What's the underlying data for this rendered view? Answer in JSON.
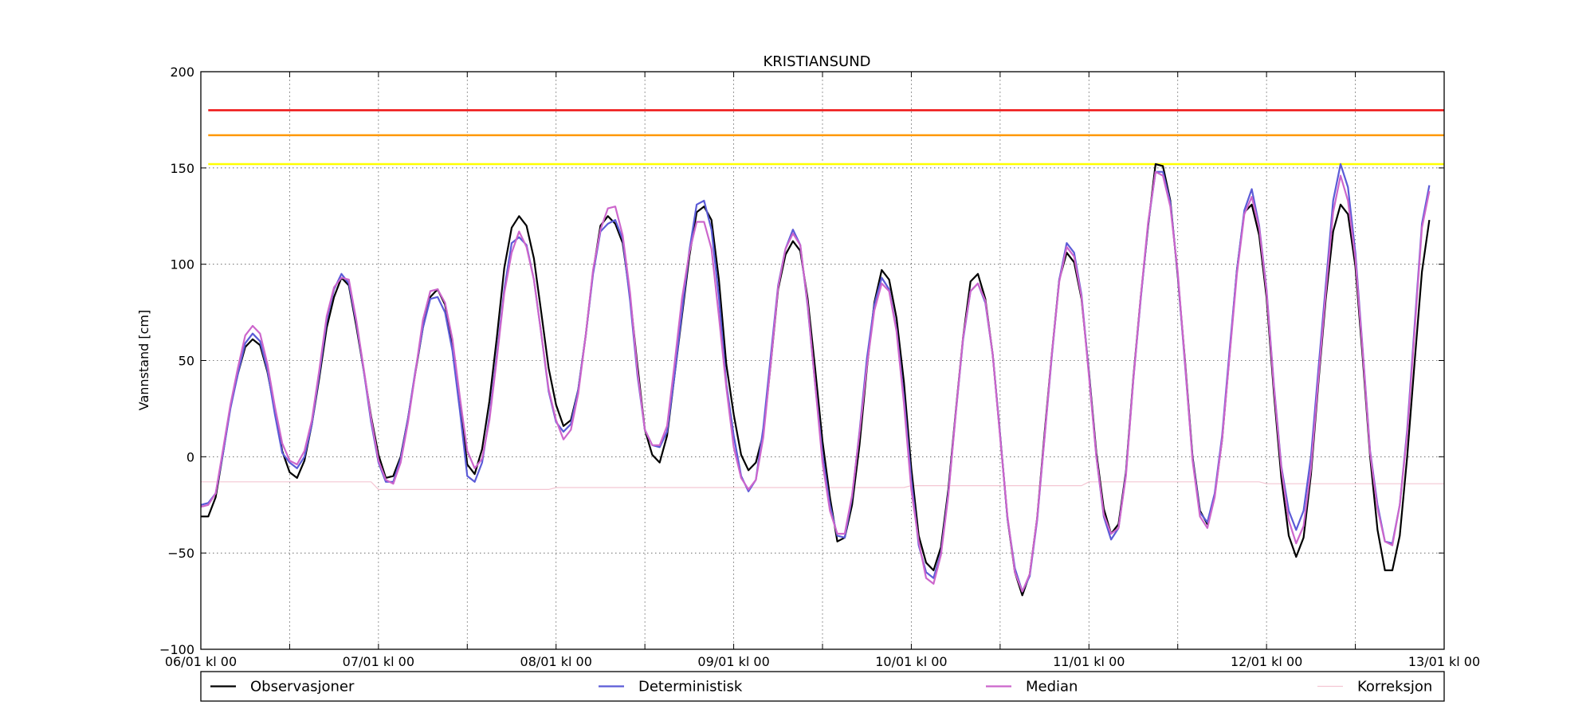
{
  "chart_data": {
    "type": "line",
    "title": "KRISTIANSUND",
    "xlabel": "",
    "ylabel": "Vannstand [cm]",
    "ylim": [
      -100,
      200
    ],
    "xlim": [
      "06/01 kl 00",
      "13/01 kl 00"
    ],
    "yticks": [
      -100,
      -50,
      0,
      50,
      100,
      150,
      200
    ],
    "ytick_labels": [
      "−100",
      "−50",
      "0",
      "50",
      "100",
      "150",
      "200"
    ],
    "xticks": [
      "06/01 kl 00",
      "07/01 kl 00",
      "08/01 kl 00",
      "09/01 kl 00",
      "10/01 kl 00",
      "11/01 kl 00",
      "12/01 kl 00",
      "13/01 kl 00"
    ],
    "grid": true,
    "legend_position": "below",
    "thresholds": [
      {
        "value": 180,
        "color": "#ee1111"
      },
      {
        "value": 167,
        "color": "#ff9900"
      },
      {
        "value": 152,
        "color": "#ffff00"
      }
    ],
    "x_hours": [
      0,
      1,
      2,
      3,
      4,
      5,
      6,
      7,
      8,
      9,
      10,
      11,
      12,
      13,
      14,
      15,
      16,
      17,
      18,
      19,
      20,
      21,
      22,
      23,
      24,
      25,
      26,
      27,
      28,
      29,
      30,
      31,
      32,
      33,
      34,
      35,
      36,
      37,
      38,
      39,
      40,
      41,
      42,
      43,
      44,
      45,
      46,
      47,
      48,
      49,
      50,
      51,
      52,
      53,
      54,
      55,
      56,
      57,
      58,
      59,
      60,
      61,
      62,
      63,
      64,
      65,
      66,
      67,
      68,
      69,
      70,
      71,
      72,
      73,
      74,
      75,
      76,
      77,
      78,
      79,
      80,
      81,
      82,
      83,
      84,
      85,
      86,
      87,
      88,
      89,
      90,
      91,
      92,
      93,
      94,
      95,
      96,
      97,
      98,
      99,
      100,
      101,
      102,
      103,
      104,
      105,
      106,
      107,
      108,
      109,
      110,
      111,
      112,
      113,
      114,
      115,
      116,
      117,
      118,
      119,
      120,
      121,
      122,
      123,
      124,
      125,
      126,
      127,
      128,
      129,
      130,
      131,
      132,
      133,
      134,
      135,
      136,
      137,
      138,
      139,
      140,
      141,
      142,
      143,
      144,
      145,
      146,
      147,
      148,
      149,
      150,
      151,
      152,
      153,
      154,
      155,
      156,
      157,
      158,
      159,
      160,
      161,
      162,
      163,
      164,
      165,
      166,
      167,
      168
    ],
    "series": [
      {
        "name": "Observasjoner",
        "color": "#000000",
        "values": [
          -31,
          -31,
          -21,
          2,
          26,
          43,
          57,
          61,
          58,
          44,
          24,
          3,
          -8,
          -11,
          -2,
          17,
          41,
          67,
          83,
          93,
          89,
          68,
          45,
          21,
          1,
          -11,
          -10,
          0,
          20,
          44,
          67,
          83,
          87,
          79,
          58,
          27,
          -4,
          -9,
          4,
          29,
          62,
          98,
          119,
          125,
          120,
          103,
          75,
          46,
          27,
          16,
          19,
          35,
          63,
          96,
          120,
          125,
          121,
          111,
          83,
          47,
          14,
          1,
          -3,
          11,
          42,
          73,
          104,
          127,
          130,
          123,
          92,
          48,
          22,
          1,
          -7,
          -3,
          12,
          48,
          87,
          105,
          112,
          107,
          82,
          46,
          8,
          -21,
          -44,
          -42,
          -25,
          6,
          46,
          80,
          97,
          92,
          72,
          39,
          -6,
          -41,
          -55,
          -59,
          -47,
          -17,
          23,
          62,
          91,
          95,
          82,
          53,
          11,
          -32,
          -60,
          -72,
          -61,
          -32,
          12,
          54,
          92,
          106,
          101,
          82,
          44,
          2,
          -27,
          -40,
          -35,
          -8,
          41,
          83,
          120,
          152,
          151,
          133,
          94,
          49,
          0,
          -28,
          -35,
          -20,
          9,
          53,
          97,
          127,
          131,
          115,
          83,
          33,
          -11,
          -41,
          -52,
          -42,
          -9,
          38,
          82,
          117,
          131,
          126,
          99,
          51,
          0,
          -38,
          -59,
          -59,
          -41,
          0,
          49,
          96,
          123
        ]
      },
      {
        "name": "Deterministisk",
        "color": "#5b5bd7",
        "values": [
          -25,
          -24,
          -19,
          2,
          25,
          43,
          59,
          64,
          60,
          45,
          22,
          2,
          -3,
          -6,
          0,
          17,
          43,
          71,
          87,
          95,
          90,
          70,
          45,
          18,
          -3,
          -13,
          -13,
          -1,
          20,
          45,
          67,
          82,
          83,
          75,
          55,
          24,
          -10,
          -13,
          -3,
          21,
          53,
          87,
          111,
          114,
          110,
          92,
          64,
          34,
          18,
          13,
          17,
          35,
          63,
          95,
          117,
          121,
          123,
          113,
          81,
          42,
          14,
          6,
          5,
          13,
          42,
          75,
          107,
          131,
          133,
          118,
          83,
          38,
          11,
          -10,
          -18,
          -12,
          15,
          52,
          89,
          108,
          118,
          110,
          78,
          38,
          1,
          -25,
          -41,
          -42,
          -21,
          13,
          51,
          79,
          93,
          87,
          66,
          31,
          -12,
          -46,
          -60,
          -63,
          -50,
          -19,
          22,
          61,
          86,
          90,
          80,
          53,
          11,
          -32,
          -58,
          -70,
          -62,
          -33,
          10,
          53,
          92,
          111,
          106,
          84,
          43,
          0,
          -31,
          -43,
          -37,
          -9,
          40,
          82,
          121,
          148,
          148,
          132,
          95,
          47,
          -1,
          -29,
          -34,
          -19,
          11,
          55,
          97,
          128,
          139,
          120,
          87,
          37,
          -5,
          -28,
          -38,
          -28,
          0,
          45,
          89,
          133,
          152,
          140,
          106,
          55,
          3,
          -25,
          -44,
          -45,
          -25,
          14,
          68,
          121,
          141
        ]
      },
      {
        "name": "Median",
        "color": "#cc66cc",
        "values": [
          -26,
          -25,
          -19,
          4,
          27,
          46,
          63,
          68,
          64,
          48,
          26,
          7,
          -2,
          -4,
          3,
          19,
          45,
          73,
          88,
          93,
          92,
          71,
          46,
          20,
          -2,
          -12,
          -14,
          -3,
          18,
          44,
          71,
          86,
          87,
          80,
          61,
          31,
          3,
          -6,
          -1,
          19,
          51,
          85,
          106,
          117,
          109,
          92,
          64,
          35,
          19,
          9,
          14,
          33,
          63,
          97,
          118,
          129,
          130,
          115,
          85,
          44,
          14,
          6,
          6,
          16,
          48,
          82,
          106,
          122,
          122,
          108,
          73,
          36,
          5,
          -11,
          -17,
          -12,
          10,
          48,
          88,
          108,
          116,
          110,
          79,
          38,
          -3,
          -28,
          -40,
          -40,
          -20,
          12,
          47,
          76,
          90,
          86,
          65,
          28,
          -17,
          -44,
          -63,
          -66,
          -51,
          -20,
          22,
          62,
          86,
          90,
          81,
          53,
          10,
          -31,
          -60,
          -70,
          -61,
          -32,
          10,
          54,
          91,
          109,
          104,
          83,
          42,
          0,
          -30,
          -40,
          -37,
          -10,
          40,
          83,
          122,
          148,
          146,
          130,
          96,
          48,
          -2,
          -31,
          -37,
          -21,
          9,
          52,
          95,
          126,
          135,
          119,
          86,
          36,
          -6,
          -33,
          -45,
          -36,
          -6,
          40,
          85,
          127,
          146,
          133,
          103,
          54,
          2,
          -27,
          -44,
          -46,
          -25,
          12,
          65,
          119,
          138
        ]
      },
      {
        "name": "Korreksjon",
        "color": "#f4c6d3",
        "values": [
          -13,
          -13,
          -13,
          -13,
          -13,
          -13,
          -13,
          -13,
          -13,
          -13,
          -13,
          -13,
          -13,
          -13,
          -13,
          -13,
          -13,
          -13,
          -13,
          -13,
          -13,
          -13,
          -13,
          -13,
          -17,
          -17,
          -17,
          -17,
          -17,
          -17,
          -17,
          -17,
          -17,
          -17,
          -17,
          -17,
          -17,
          -17,
          -17,
          -17,
          -17,
          -17,
          -17,
          -17,
          -17,
          -17,
          -17,
          -17,
          -16,
          -16,
          -16,
          -16,
          -16,
          -16,
          -16,
          -16,
          -16,
          -16,
          -16,
          -16,
          -16,
          -16,
          -16,
          -16,
          -16,
          -16,
          -16,
          -16,
          -16,
          -16,
          -16,
          -16,
          -16,
          -16,
          -16,
          -16,
          -16,
          -16,
          -16,
          -16,
          -16,
          -16,
          -16,
          -16,
          -16,
          -16,
          -16,
          -16,
          -16,
          -16,
          -16,
          -16,
          -16,
          -16,
          -16,
          -16,
          -15,
          -15,
          -15,
          -15,
          -15,
          -15,
          -15,
          -15,
          -15,
          -15,
          -15,
          -15,
          -15,
          -15,
          -15,
          -15,
          -15,
          -15,
          -15,
          -15,
          -15,
          -15,
          -15,
          -15,
          -13,
          -13,
          -13,
          -13,
          -13,
          -13,
          -13,
          -13,
          -13,
          -13,
          -13,
          -13,
          -13,
          -13,
          -13,
          -13,
          -13,
          -13,
          -13,
          -13,
          -13,
          -13,
          -13,
          -13,
          -14,
          -14,
          -14,
          -14,
          -14,
          -14,
          -14,
          -14,
          -14,
          -14,
          -14,
          -14,
          -14,
          -14,
          -14,
          -14,
          -14,
          -14,
          -14,
          -14,
          -14,
          -14,
          -14,
          -14,
          -14
        ]
      }
    ]
  }
}
